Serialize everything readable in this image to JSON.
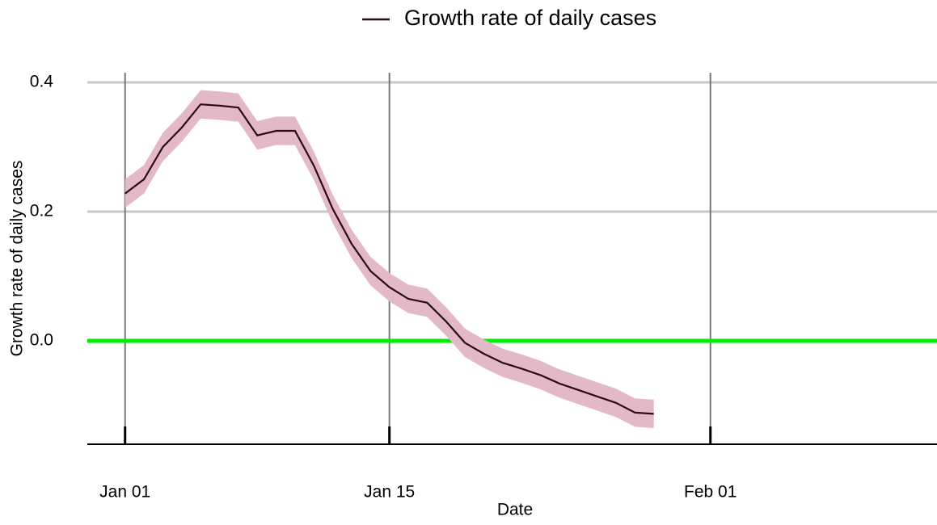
{
  "chart_data": {
    "type": "line",
    "x_label": "Date",
    "y_label": "Growth rate of daily cases",
    "x": [
      "Jan 01",
      "Jan 02",
      "Jan 03",
      "Jan 04",
      "Jan 05",
      "Jan 06",
      "Jan 07",
      "Jan 08",
      "Jan 09",
      "Jan 10",
      "Jan 11",
      "Jan 12",
      "Jan 13",
      "Jan 14",
      "Jan 15",
      "Jan 16",
      "Jan 17",
      "Jan 18",
      "Jan 19",
      "Jan 20",
      "Jan 21",
      "Jan 22",
      "Jan 23",
      "Jan 24",
      "Jan 25",
      "Jan 26",
      "Jan 27",
      "Jan 28",
      "Jan 29"
    ],
    "series": [
      {
        "name": "Growth rate of daily cases",
        "color": "#2a0a14",
        "values": [
          0.228,
          0.25,
          0.3,
          0.33,
          0.366,
          0.364,
          0.361,
          0.318,
          0.325,
          0.325,
          0.271,
          0.204,
          0.15,
          0.108,
          0.083,
          0.065,
          0.059,
          0.03,
          -0.003,
          -0.02,
          -0.034,
          -0.043,
          -0.053,
          -0.066,
          -0.076,
          -0.086,
          -0.096,
          -0.111,
          -0.113
        ],
        "lower": [
          0.206,
          0.228,
          0.278,
          0.308,
          0.344,
          0.342,
          0.339,
          0.296,
          0.303,
          0.303,
          0.249,
          0.182,
          0.128,
          0.086,
          0.061,
          0.043,
          0.037,
          0.008,
          -0.025,
          -0.042,
          -0.056,
          -0.065,
          -0.075,
          -0.088,
          -0.098,
          -0.108,
          -0.118,
          -0.133,
          -0.135
        ],
        "upper": [
          0.25,
          0.272,
          0.322,
          0.352,
          0.388,
          0.386,
          0.383,
          0.34,
          0.347,
          0.347,
          0.293,
          0.226,
          0.172,
          0.13,
          0.105,
          0.087,
          0.081,
          0.052,
          0.019,
          0.002,
          -0.012,
          -0.021,
          -0.031,
          -0.044,
          -0.054,
          -0.064,
          -0.074,
          -0.089,
          -0.091
        ],
        "band_color": "#e4b9c7"
      }
    ],
    "xlim": [
      "Dec 30",
      "Feb 13"
    ],
    "xticks": [
      "Jan 01",
      "Jan 15",
      "Feb 01"
    ],
    "ylim": [
      -0.16,
      0.415
    ],
    "yticks": [
      {
        "value": 0,
        "label": "0.0"
      },
      0.2,
      0.4
    ],
    "hline": {
      "value": 0,
      "color": "#00ee00"
    },
    "grid": true,
    "legend": "top"
  }
}
